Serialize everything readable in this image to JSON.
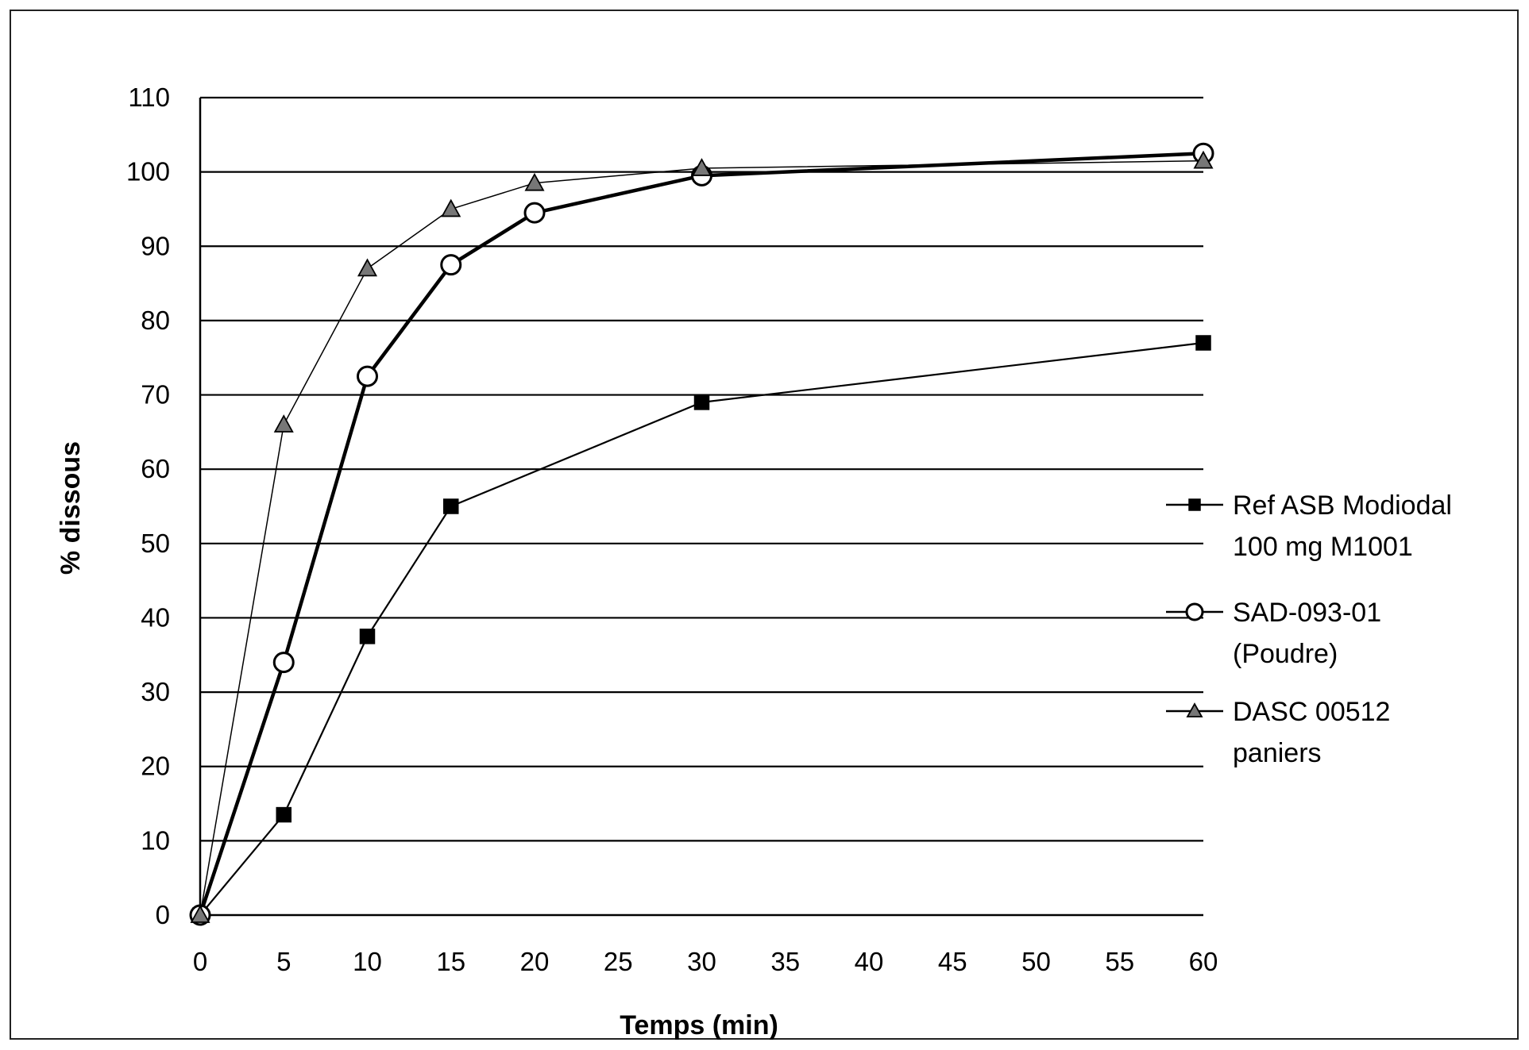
{
  "chart_data": {
    "type": "line",
    "xlabel": "Temps (min)",
    "ylabel": "% dissous",
    "xlim": [
      0,
      60
    ],
    "ylim": [
      0,
      110
    ],
    "x_ticks": [
      0,
      5,
      10,
      15,
      20,
      25,
      30,
      35,
      40,
      45,
      50,
      55,
      60
    ],
    "y_ticks": [
      0,
      10,
      20,
      30,
      40,
      50,
      60,
      70,
      80,
      90,
      100,
      110
    ],
    "grid": "horizontal",
    "legend_position": "right",
    "series": [
      {
        "name_lines": [
          "Ref ASB Modiodal",
          "100 mg M1001"
        ],
        "marker": "square",
        "color": "#000000",
        "x": [
          0,
          5,
          10,
          15,
          30,
          60
        ],
        "y": [
          0,
          13.5,
          37.5,
          55,
          69,
          77
        ]
      },
      {
        "name_lines": [
          "SAD-093-01",
          "(Poudre)"
        ],
        "marker": "circle",
        "color": "#000000",
        "x": [
          0,
          5,
          10,
          15,
          20,
          30,
          60
        ],
        "y": [
          0,
          34,
          72.5,
          87.5,
          94.5,
          99.5,
          102.5
        ]
      },
      {
        "name_lines": [
          "DASC 00512",
          "paniers"
        ],
        "marker": "triangle",
        "color": "#000000",
        "x": [
          0,
          5,
          10,
          15,
          20,
          30,
          60
        ],
        "y": [
          0,
          66,
          87,
          95,
          98.5,
          100.5,
          101.5
        ]
      }
    ]
  }
}
